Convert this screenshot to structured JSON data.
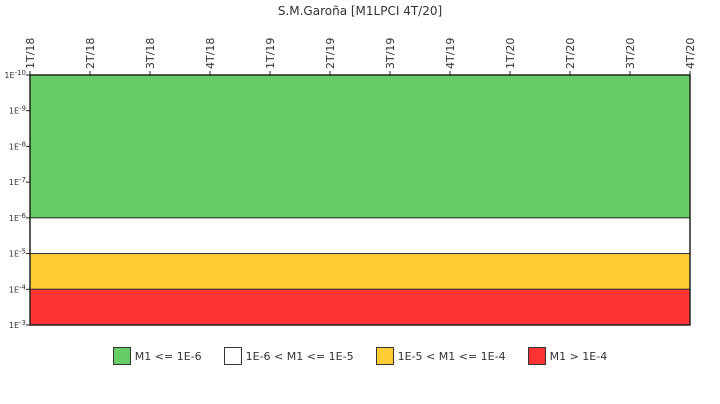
{
  "chart_data": {
    "type": "area",
    "title": "S.M.Garoña [M1LPCI 4T/20]",
    "x_categories": [
      "1T/18",
      "2T/18",
      "3T/18",
      "4T/18",
      "1T/19",
      "2T/19",
      "3T/19",
      "4T/19",
      "1T/20",
      "2T/20",
      "3T/20",
      "4T/20"
    ],
    "y_scale": "log",
    "y_inverted": true,
    "y_range": [
      "1E-10",
      "1E-3"
    ],
    "y_ticks": [
      {
        "exp": -10,
        "label": "1E-10"
      },
      {
        "exp": -9,
        "label": "1E-9"
      },
      {
        "exp": -8,
        "label": "1E-8"
      },
      {
        "exp": -7,
        "label": "1E-7"
      },
      {
        "exp": -6,
        "label": "1E-6"
      },
      {
        "exp": -5,
        "label": "1E-5"
      },
      {
        "exp": -4,
        "label": "1E-4"
      },
      {
        "exp": -3,
        "label": "1E-3"
      }
    ],
    "bands": [
      {
        "from_exp": -10,
        "to_exp": -6,
        "color": "#66cc66",
        "label": "M1 <= 1E-6"
      },
      {
        "from_exp": -6,
        "to_exp": -5,
        "color": "#ffffff",
        "label": "1E-6 < M1 <= 1E-5"
      },
      {
        "from_exp": -5,
        "to_exp": -4,
        "color": "#ffcc33",
        "label": "1E-5 < M1 <= 1E-4"
      },
      {
        "from_exp": -4,
        "to_exp": -3,
        "color": "#ff3333",
        "label": "M1 > 1E-4"
      }
    ],
    "legend_position": "bottom",
    "grid": false
  }
}
